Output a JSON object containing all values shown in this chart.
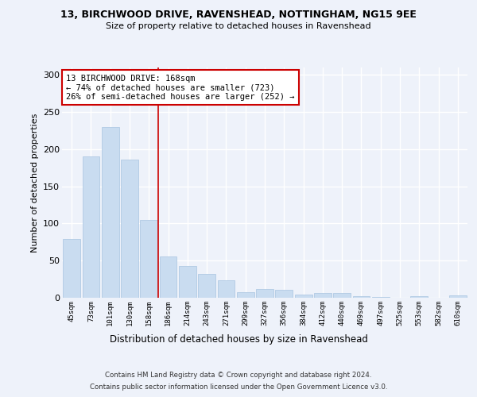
{
  "title1": "13, BIRCHWOOD DRIVE, RAVENSHEAD, NOTTINGHAM, NG15 9EE",
  "title2": "Size of property relative to detached houses in Ravenshead",
  "xlabel": "Distribution of detached houses by size in Ravenshead",
  "ylabel": "Number of detached properties",
  "categories": [
    "45sqm",
    "73sqm",
    "101sqm",
    "130sqm",
    "158sqm",
    "186sqm",
    "214sqm",
    "243sqm",
    "271sqm",
    "299sqm",
    "327sqm",
    "356sqm",
    "384sqm",
    "412sqm",
    "440sqm",
    "469sqm",
    "497sqm",
    "525sqm",
    "553sqm",
    "582sqm",
    "610sqm"
  ],
  "values": [
    79,
    190,
    230,
    186,
    105,
    56,
    43,
    32,
    24,
    7,
    12,
    11,
    4,
    6,
    6,
    2,
    1,
    0,
    2,
    0,
    3
  ],
  "bar_color": "#c9dcf0",
  "bar_edge_color": "#a8c4e0",
  "vline_x_index": 4.5,
  "vline_color": "#cc0000",
  "annotation_text": "13 BIRCHWOOD DRIVE: 168sqm\n← 74% of detached houses are smaller (723)\n26% of semi-detached houses are larger (252) →",
  "annotation_box_color": "white",
  "annotation_box_edge_color": "#cc0000",
  "ylim": [
    0,
    310
  ],
  "yticks": [
    0,
    50,
    100,
    150,
    200,
    250,
    300
  ],
  "footer1": "Contains HM Land Registry data © Crown copyright and database right 2024.",
  "footer2": "Contains public sector information licensed under the Open Government Licence v3.0.",
  "bg_color": "#eef2fa",
  "plot_bg_color": "#eef2fa"
}
